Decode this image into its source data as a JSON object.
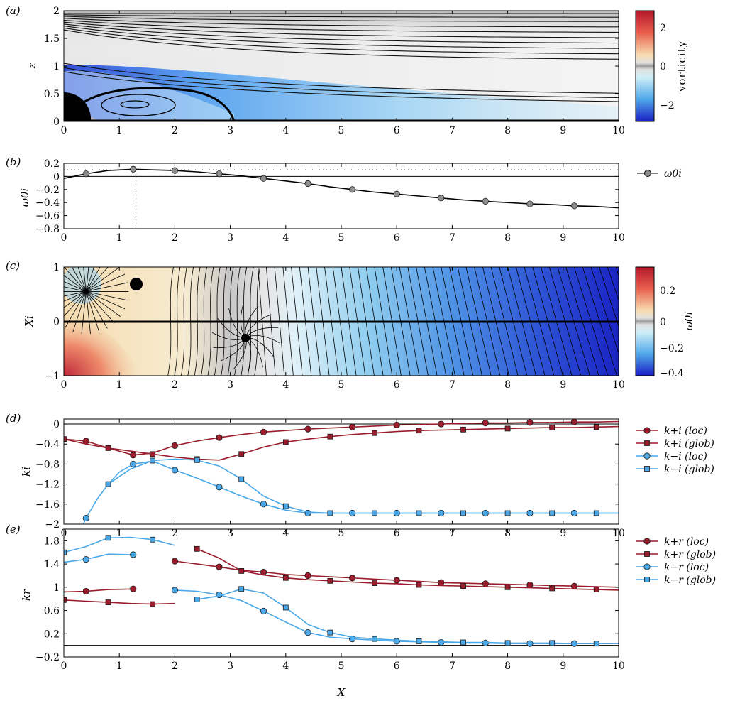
{
  "figure": {
    "panels": [
      {
        "id": "a",
        "label": "(a)"
      },
      {
        "id": "b",
        "label": "(b)"
      },
      {
        "id": "c",
        "label": "(c)"
      },
      {
        "id": "d",
        "label": "(d)"
      },
      {
        "id": "e",
        "label": "(e)"
      }
    ],
    "x_label": "X",
    "colorbar_a_label": "vorticity",
    "colorbar_c_label": "ω0i"
  },
  "colors": {
    "dark_red": "#9b1c2c",
    "light_blue": "#4aa8e8",
    "gray_marker": "#8c8c8c",
    "curve": "#000000"
  },
  "chart_data": [
    {
      "panel": "a",
      "type": "heatmap",
      "x_range": [
        0,
        10
      ],
      "x_ticks": [
        "0",
        "1",
        "2",
        "3",
        "4",
        "5",
        "6",
        "7",
        "8",
        "9",
        "10"
      ],
      "y_label": "z",
      "y_range": [
        0,
        2
      ],
      "y_ticks": [
        "0",
        "0.5",
        "1",
        "1.5",
        "2"
      ],
      "colorbar": {
        "label": "vorticity",
        "range": [
          -3,
          3
        ],
        "ticks": [
          "2",
          "0",
          "−2"
        ]
      }
    },
    {
      "panel": "b",
      "type": "line",
      "y_label": "ω0i",
      "x_range": [
        0,
        10
      ],
      "y_range": [
        -0.8,
        0.2
      ],
      "x_ticks": [
        "0",
        "1",
        "2",
        "3",
        "4",
        "5",
        "6",
        "7",
        "8",
        "9",
        "10"
      ],
      "y_ticks": [
        "0.2",
        "0",
        "−0.2",
        "−0.4",
        "−0.6",
        "−0.8"
      ],
      "series": [
        {
          "name": "ω0i",
          "x": [
            0,
            0.4,
            0.8,
            1.25,
            1.6,
            2.0,
            2.4,
            2.8,
            3.2,
            3.6,
            4.0,
            4.4,
            4.8,
            5.2,
            5.6,
            6.0,
            6.4,
            6.8,
            7.2,
            7.6,
            8.0,
            8.4,
            8.8,
            9.2,
            9.6,
            10.0
          ],
          "y": [
            -0.03,
            0.04,
            0.09,
            0.11,
            0.1,
            0.09,
            0.07,
            0.04,
            0.01,
            -0.03,
            -0.07,
            -0.11,
            -0.16,
            -0.2,
            -0.24,
            -0.27,
            -0.3,
            -0.33,
            -0.36,
            -0.38,
            -0.4,
            -0.42,
            -0.43,
            -0.45,
            -0.46,
            -0.48
          ],
          "markers_x": [
            0.4,
            1.25,
            2.0,
            2.8,
            3.6,
            4.4,
            5.2,
            6.0,
            6.8,
            7.6,
            8.4,
            9.2
          ]
        }
      ],
      "dotted_h_y": 0.1,
      "dotted_v_x": 1.3
    },
    {
      "panel": "c",
      "type": "heatmap",
      "y_label": "Xi",
      "x_range": [
        0,
        10
      ],
      "y_range": [
        -1,
        1
      ],
      "x_ticks": [
        "0",
        "1",
        "2",
        "3",
        "4",
        "5",
        "6",
        "7",
        "8",
        "9",
        "10"
      ],
      "y_ticks": [
        "1",
        "0",
        "−1"
      ],
      "colorbar": {
        "label": "ω0i",
        "range": [
          -0.4,
          0.4
        ],
        "ticks": [
          "0.2",
          "0",
          "−0.2",
          "−0.4"
        ]
      },
      "saddles": [
        {
          "x": 1.3,
          "y": 0.7
        },
        {
          "x": 3.28,
          "y": -0.3
        },
        {
          "x": 0.4,
          "y": 0.55
        }
      ]
    },
    {
      "panel": "d",
      "type": "line",
      "y_label": "ki",
      "x_range": [
        0,
        10
      ],
      "y_range": [
        -2,
        0.1
      ],
      "x_ticks": [
        "0",
        "1",
        "2",
        "3",
        "4",
        "5",
        "6",
        "7",
        "8",
        "9",
        "10"
      ],
      "y_ticks": [
        "0",
        "−0.4",
        "−0.8",
        "−1.2",
        "−1.6",
        "−2"
      ],
      "series": [
        {
          "name": "k+i (loc)",
          "color": "dark_red",
          "marker": "circle",
          "x": [
            0,
            0.4,
            0.8,
            1.25,
            1.6,
            2.0,
            2.4,
            2.8,
            3.2,
            3.6,
            4.0,
            4.4,
            4.8,
            5.2,
            5.6,
            6.0,
            6.4,
            6.8,
            7.2,
            7.6,
            8.0,
            8.4,
            8.8,
            9.2,
            9.6,
            10.0
          ],
          "y": [
            -0.3,
            -0.34,
            -0.48,
            -0.62,
            -0.58,
            -0.43,
            -0.34,
            -0.27,
            -0.21,
            -0.16,
            -0.13,
            -0.1,
            -0.08,
            -0.06,
            -0.04,
            -0.02,
            -0.01,
            0.0,
            0.01,
            0.02,
            0.02,
            0.03,
            0.03,
            0.04,
            0.04,
            0.05
          ],
          "markers_x": [
            0.4,
            1.25,
            2.0,
            2.8,
            3.6,
            4.4,
            5.2,
            6.0,
            6.8,
            7.6,
            8.4,
            9.2
          ]
        },
        {
          "name": "k+i (glob)",
          "color": "dark_red",
          "marker": "square",
          "x": [
            0,
            0.4,
            0.8,
            1.2,
            1.6,
            2.0,
            2.4,
            2.8,
            3.2,
            3.6,
            4.0,
            4.4,
            4.8,
            5.2,
            5.6,
            6.0,
            6.4,
            6.8,
            7.2,
            7.6,
            8.0,
            8.4,
            8.8,
            9.2,
            9.6,
            10.0
          ],
          "y": [
            -0.3,
            -0.4,
            -0.48,
            -0.54,
            -0.6,
            -0.66,
            -0.7,
            -0.72,
            -0.6,
            -0.46,
            -0.36,
            -0.3,
            -0.25,
            -0.21,
            -0.18,
            -0.15,
            -0.13,
            -0.12,
            -0.11,
            -0.1,
            -0.09,
            -0.08,
            -0.07,
            -0.07,
            -0.06,
            -0.05
          ],
          "markers_x": [
            0,
            0.8,
            1.6,
            2.4,
            3.2,
            4.0,
            4.8,
            5.6,
            6.4,
            7.2,
            8.0,
            8.8,
            9.6
          ]
        },
        {
          "name": "k−i (loc)",
          "color": "light_blue",
          "marker": "circle",
          "x": [
            0.35,
            0.4,
            0.6,
            0.8,
            1.0,
            1.25,
            1.6,
            2.0,
            2.4,
            2.8,
            3.2,
            3.6,
            4.0,
            4.4,
            4.8,
            5.2,
            6.0,
            7.0,
            8.0,
            9.0,
            10.0
          ],
          "y": [
            -2.0,
            -1.88,
            -1.5,
            -1.2,
            -0.96,
            -0.8,
            -0.74,
            -0.92,
            -1.08,
            -1.26,
            -1.44,
            -1.6,
            -1.72,
            -1.78,
            -1.78,
            -1.78,
            -1.78,
            -1.78,
            -1.78,
            -1.78,
            -1.78
          ],
          "markers_x": [
            0.4,
            1.25,
            2.0,
            2.8,
            3.6,
            4.4,
            5.2,
            6.0,
            6.8,
            7.6,
            8.4,
            9.2
          ]
        },
        {
          "name": "k−i (glob)",
          "color": "light_blue",
          "marker": "square",
          "x": [
            0.8,
            1.2,
            1.6,
            2.0,
            2.4,
            2.8,
            3.2,
            3.6,
            4.0,
            4.4,
            4.8,
            5.2,
            6.0,
            7.0,
            8.0,
            9.0,
            10.0
          ],
          "y": [
            -1.2,
            -0.9,
            -0.73,
            -0.7,
            -0.72,
            -0.84,
            -1.1,
            -1.44,
            -1.64,
            -1.76,
            -1.78,
            -1.78,
            -1.78,
            -1.78,
            -1.78,
            -1.78,
            -1.78
          ],
          "markers_x": [
            0.8,
            1.6,
            2.4,
            3.2,
            4.0,
            4.8,
            5.6,
            6.4,
            7.2,
            8.0,
            8.8,
            9.6
          ]
        }
      ]
    },
    {
      "panel": "e",
      "type": "line",
      "y_label": "kr",
      "x_range": [
        0,
        10
      ],
      "y_range": [
        -0.2,
        2.0
      ],
      "x_ticks": [
        "0",
        "1",
        "2",
        "3",
        "4",
        "5",
        "6",
        "7",
        "8",
        "9",
        "10"
      ],
      "y_ticks": [
        "1.8",
        "1.4",
        "1",
        "0.6",
        "0.2",
        "−0.2"
      ],
      "series": [
        {
          "name": "k+r (loc)",
          "color": "dark_red",
          "marker": "circle",
          "x": [
            0,
            0.4,
            0.8,
            1.25,
            1.5,
            2.0,
            2.4,
            2.8,
            3.2,
            3.6,
            4.0,
            4.4,
            4.8,
            5.2,
            5.6,
            6.0,
            6.4,
            6.8,
            7.2,
            7.6,
            8.0,
            8.4,
            8.8,
            9.2,
            9.6,
            10.0
          ],
          "y": [
            0.92,
            0.93,
            0.96,
            0.97,
            null,
            1.45,
            1.4,
            1.35,
            1.29,
            1.26,
            1.22,
            1.2,
            1.18,
            1.16,
            1.14,
            1.12,
            1.1,
            1.08,
            1.07,
            1.06,
            1.05,
            1.04,
            1.03,
            1.02,
            1.01,
            1.0
          ],
          "markers_x": [
            0.4,
            1.25,
            2.0,
            2.8,
            3.6,
            4.4,
            5.2,
            6.0,
            6.8,
            7.6,
            8.4,
            9.2
          ]
        },
        {
          "name": "k+r (glob)",
          "color": "dark_red",
          "marker": "square",
          "x": [
            0,
            0.4,
            0.8,
            1.2,
            1.6,
            2.0,
            2.2,
            2.4,
            2.8,
            3.2,
            3.6,
            4.0,
            4.4,
            4.8,
            5.2,
            5.6,
            6.0,
            6.4,
            6.8,
            7.2,
            7.6,
            8.0,
            8.4,
            8.8,
            9.2,
            9.6,
            10.0
          ],
          "y": [
            0.78,
            0.76,
            0.74,
            0.72,
            0.71,
            0.72,
            null,
            1.66,
            1.5,
            1.28,
            1.21,
            1.16,
            1.13,
            1.11,
            1.09,
            1.07,
            1.06,
            1.04,
            1.03,
            1.02,
            1.01,
            1.0,
            0.99,
            0.98,
            0.97,
            0.96,
            0.95
          ],
          "markers_x": [
            0,
            0.8,
            1.6,
            2.4,
            3.2,
            4.0,
            4.8,
            5.6,
            6.4,
            7.2,
            8.0,
            8.8,
            9.6
          ]
        },
        {
          "name": "k−r (loc)",
          "color": "light_blue",
          "marker": "circle",
          "x": [
            0,
            0.4,
            0.8,
            1.25,
            1.5,
            2.0,
            2.4,
            2.8,
            3.2,
            3.6,
            4.0,
            4.4,
            4.8,
            5.2,
            5.6,
            6.0,
            6.4,
            6.8,
            7.2,
            7.6,
            8.0,
            8.4,
            8.8,
            9.2,
            9.6,
            10.0
          ],
          "y": [
            1.43,
            1.48,
            1.57,
            1.56,
            null,
            0.95,
            0.93,
            0.87,
            0.77,
            0.59,
            0.4,
            0.22,
            0.14,
            0.11,
            0.09,
            0.07,
            0.06,
            0.05,
            0.04,
            0.04,
            0.03,
            0.03,
            0.03,
            0.03,
            0.03,
            0.03
          ],
          "markers_x": [
            0.4,
            1.25,
            2.0,
            2.8,
            3.6,
            4.4,
            5.2,
            6.0,
            6.8,
            7.6,
            8.4,
            9.2
          ]
        },
        {
          "name": "k−r (glob)",
          "color": "light_blue",
          "marker": "square",
          "x": [
            0,
            0.4,
            0.8,
            1.2,
            1.6,
            2.0,
            2.2,
            2.4,
            2.8,
            3.2,
            3.6,
            4.0,
            4.4,
            4.8,
            5.2,
            5.6,
            6.0,
            6.4,
            6.8,
            7.2,
            7.6,
            8.0,
            8.4,
            8.8,
            9.2,
            9.6,
            10.0
          ],
          "y": [
            1.6,
            1.7,
            1.85,
            1.86,
            1.82,
            1.72,
            null,
            0.79,
            0.85,
            0.97,
            0.9,
            0.65,
            0.36,
            0.22,
            0.14,
            0.11,
            0.09,
            0.07,
            0.06,
            0.05,
            0.05,
            0.04,
            0.04,
            0.04,
            0.03,
            0.03,
            0.03
          ],
          "markers_x": [
            0,
            0.8,
            1.6,
            2.4,
            3.2,
            4.0,
            4.8,
            5.6,
            6.4,
            7.2,
            8.0,
            8.8,
            9.6
          ]
        }
      ]
    }
  ]
}
